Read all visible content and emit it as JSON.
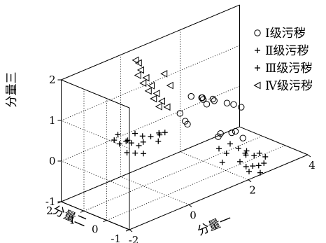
{
  "chart_data": {
    "type": "scatter",
    "dimensions": 3,
    "axes": {
      "x": {
        "label": "分量一",
        "ticks": [
          -2,
          0,
          2,
          4
        ]
      },
      "y": {
        "label": "分量二",
        "ticks": [
          -1,
          0,
          1,
          2
        ]
      },
      "z": {
        "label": "分量三",
        "ticks": [
          -1,
          0,
          1,
          2
        ]
      }
    },
    "grid": true,
    "legend_position": "right",
    "series": [
      {
        "name": "Ⅰ级污秽",
        "marker": "circle",
        "points": [
          [
            1.3,
            0.6,
            0.9
          ],
          [
            1.5,
            0.4,
            0.85
          ],
          [
            1.6,
            0.5,
            0.8
          ],
          [
            1.8,
            0.3,
            0.75
          ],
          [
            1.7,
            0.6,
            0.7
          ],
          [
            2.0,
            0.5,
            0.6
          ],
          [
            2.2,
            0.2,
            0.55
          ],
          [
            2.5,
            0.3,
            0.4
          ],
          [
            1.9,
            0.7,
            0.5
          ],
          [
            2.6,
            0.1,
            0.35
          ],
          [
            1.0,
            0.7,
            0.55
          ],
          [
            1.1,
            0.6,
            0.35
          ],
          [
            1.1,
            0.5,
            0.3
          ],
          [
            1.6,
            -0.3,
            0.1
          ],
          [
            1.9,
            -0.4,
            0.05
          ],
          [
            2.1,
            -0.3,
            0.0
          ],
          [
            1.6,
            -0.2,
            0.0
          ],
          [
            2.2,
            -0.5,
            -0.15
          ]
        ]
      },
      {
        "name": "Ⅱ级污秽",
        "marker": "plus",
        "points": [
          [
            -0.6,
            1.5,
            0.2
          ],
          [
            -0.5,
            1.4,
            0.1
          ],
          [
            -0.3,
            1.3,
            0.15
          ],
          [
            -0.4,
            1.6,
            0.25
          ],
          [
            -0.2,
            1.5,
            0.05
          ],
          [
            -0.1,
            1.4,
            0.0
          ],
          [
            0.0,
            1.2,
            -0.05
          ],
          [
            0.2,
            1.3,
            0.1
          ],
          [
            0.4,
            1.2,
            0.05
          ],
          [
            0.6,
            1.1,
            0.1
          ],
          [
            0.5,
            1.0,
            -0.05
          ],
          [
            0.7,
            1.2,
            0.0
          ],
          [
            0.8,
            1.1,
            0.05
          ],
          [
            -0.2,
            1.1,
            -0.15
          ],
          [
            0.0,
            1.0,
            -0.2
          ],
          [
            0.3,
            1.4,
            -0.1
          ],
          [
            -0.4,
            1.2,
            -0.1
          ],
          [
            0.1,
            1.5,
            0.15
          ]
        ]
      },
      {
        "name": "Ⅲ级污秽",
        "marker": "plus",
        "points": [
          [
            1.7,
            -0.1,
            -0.35
          ],
          [
            2.0,
            -0.2,
            -0.3
          ],
          [
            1.8,
            -0.3,
            -0.45
          ],
          [
            2.2,
            -0.3,
            -0.45
          ],
          [
            2.4,
            -0.4,
            -0.55
          ],
          [
            2.1,
            -0.5,
            -0.7
          ],
          [
            2.3,
            -0.5,
            -0.6
          ],
          [
            2.5,
            -0.6,
            -0.65
          ],
          [
            2.6,
            -0.7,
            -0.6
          ],
          [
            2.3,
            -0.8,
            -0.8
          ],
          [
            2.5,
            -0.8,
            -0.85
          ],
          [
            2.1,
            -0.9,
            -0.85
          ],
          [
            2.4,
            -1.0,
            -0.95
          ],
          [
            2.6,
            -0.9,
            -0.8
          ],
          [
            2.0,
            -0.9,
            -0.7
          ],
          [
            2.8,
            -0.7,
            -0.75
          ],
          [
            2.2,
            -0.6,
            -0.5
          ],
          [
            1.2,
            -0.9,
            -0.35
          ]
        ]
      },
      {
        "name": "Ⅳ级污秽",
        "marker": "triangle-left",
        "points": [
          [
            0.2,
            1.6,
            1.9
          ],
          [
            0.3,
            1.6,
            1.8
          ],
          [
            0.3,
            1.5,
            1.65
          ],
          [
            0.2,
            1.5,
            1.55
          ],
          [
            0.4,
            1.4,
            1.45
          ],
          [
            0.3,
            1.4,
            1.35
          ],
          [
            0.5,
            1.3,
            1.25
          ],
          [
            0.4,
            1.3,
            1.15
          ],
          [
            0.6,
            1.2,
            1.05
          ],
          [
            0.5,
            1.2,
            0.95
          ],
          [
            0.7,
            1.1,
            0.85
          ],
          [
            0.6,
            1.1,
            0.75
          ],
          [
            0.8,
            1.0,
            0.7
          ],
          [
            0.7,
            1.0,
            1.55
          ],
          [
            0.9,
            1.0,
            1.2
          ]
        ]
      }
    ]
  }
}
